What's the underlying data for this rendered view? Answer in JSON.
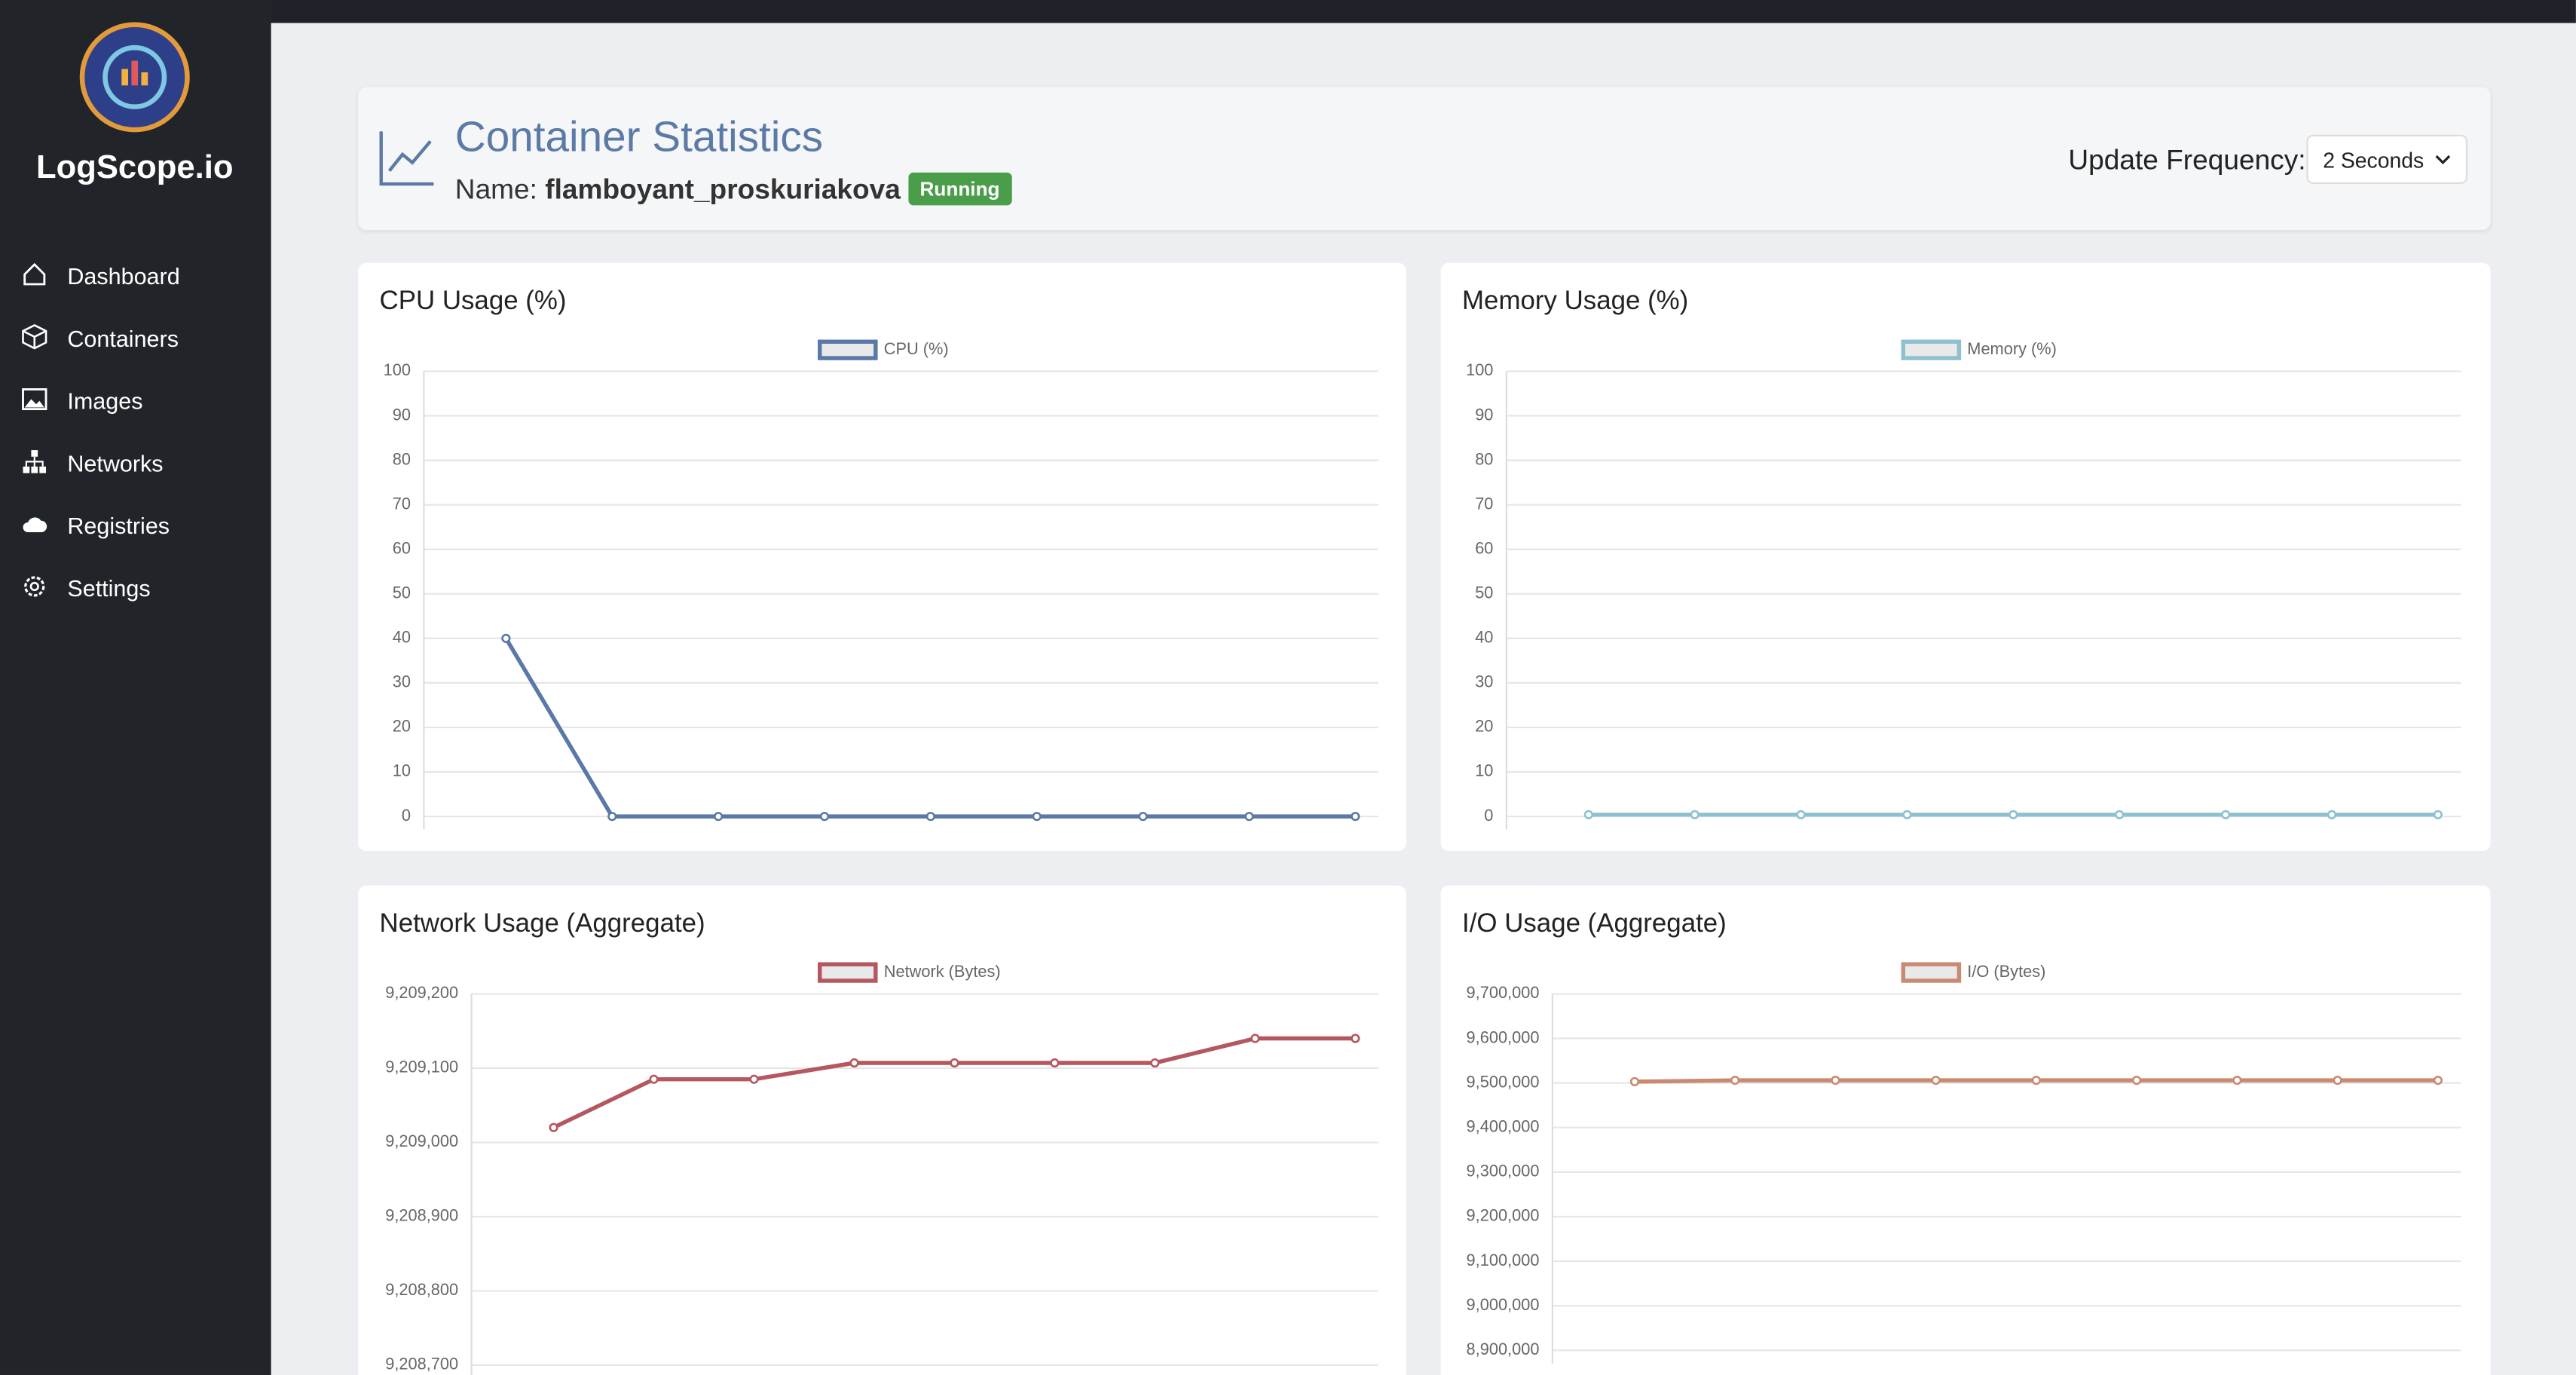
{
  "sidebar": {
    "brand": "LogScope.io",
    "nav": [
      "Dashboard",
      "Containers",
      "Images",
      "Networks",
      "Registries",
      "Settings"
    ]
  },
  "header": {
    "title": "Container Statistics",
    "name_label": "Name:",
    "name": "flamboyant_proskuriakova",
    "status": "Running",
    "frequency_label": "Update Frequency:",
    "frequency": "2 Seconds"
  },
  "chart_data": [
    {
      "type": "line",
      "title": "CPU Usage (%)",
      "categories": [
        null,
        null,
        null,
        null,
        null,
        null,
        null,
        null,
        null
      ],
      "series": [
        {
          "name": "CPU (%)",
          "color": "#5a78a8",
          "values": [
            40,
            0,
            0,
            0,
            0,
            0,
            0,
            0,
            0
          ]
        }
      ],
      "ylim": [
        0,
        100
      ],
      "yticks": [
        0,
        10,
        20,
        30,
        40,
        50,
        60,
        70,
        80,
        90,
        100
      ],
      "grid": true
    },
    {
      "type": "line",
      "title": "Memory Usage (%)",
      "categories": [
        null,
        null,
        null,
        null,
        null,
        null,
        null,
        null,
        null
      ],
      "series": [
        {
          "name": "Memory (%)",
          "color": "#8ec0d0",
          "values": [
            0.4,
            0.4,
            0.4,
            0.4,
            0.4,
            0.4,
            0.4,
            0.4,
            0.4
          ]
        }
      ],
      "ylim": [
        0,
        100
      ],
      "yticks": [
        0,
        10,
        20,
        30,
        40,
        50,
        60,
        70,
        80,
        90,
        100
      ],
      "grid": true
    },
    {
      "type": "line",
      "title": "Network Usage (Aggregate)",
      "categories": [
        null,
        null,
        null,
        null,
        null,
        null,
        null,
        null,
        null
      ],
      "series": [
        {
          "name": "Network (Bytes)",
          "color": "#b5575f",
          "values": [
            9209020,
            9209085,
            9209085,
            9209107,
            9209107,
            9209107,
            9209107,
            9209140,
            9209140
          ]
        }
      ],
      "ylim": [
        9208700,
        9209200
      ],
      "yticks": [
        {
          "value": 9208700,
          "label": "9,208,700"
        },
        {
          "value": 9208800,
          "label": "9,208,800"
        },
        {
          "value": 9208900,
          "label": "9,208,900"
        },
        {
          "value": 9209000,
          "label": "9,209,000"
        },
        {
          "value": 9209100,
          "label": "9,209,100"
        },
        {
          "value": 9209200,
          "label": "9,209,200"
        }
      ],
      "grid": true
    },
    {
      "type": "line",
      "title": "I/O Usage (Aggregate)",
      "categories": [
        null,
        null,
        null,
        null,
        null,
        null,
        null,
        null,
        null
      ],
      "series": [
        {
          "name": "I/O (Bytes)",
          "color": "#c98a72",
          "values": [
            9503000,
            9506000,
            9506000,
            9506000,
            9506000,
            9506000,
            9506000,
            9506000,
            9506000
          ]
        }
      ],
      "ylim": [
        8900000,
        9700000
      ],
      "yticks": [
        {
          "value": 8900000,
          "label": "8,900,000"
        },
        {
          "value": 9000000,
          "label": "9,000,000"
        },
        {
          "value": 9100000,
          "label": "9,100,000"
        },
        {
          "value": 9200000,
          "label": "9,200,000"
        },
        {
          "value": 9300000,
          "label": "9,300,000"
        },
        {
          "value": 9400000,
          "label": "9,400,000"
        },
        {
          "value": 9500000,
          "label": "9,500,000"
        },
        {
          "value": 9600000,
          "label": "9,600,000"
        },
        {
          "value": 9700000,
          "label": "9,700,000"
        }
      ],
      "grid": true
    }
  ]
}
